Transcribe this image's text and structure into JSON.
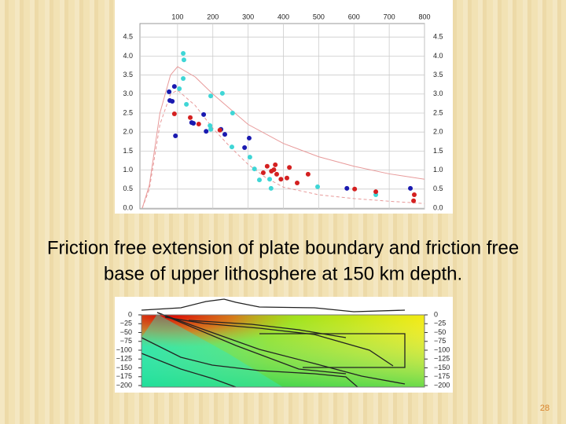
{
  "chart_data": [
    {
      "type": "scatter",
      "xlim": [
        0,
        800
      ],
      "xticks": [
        100,
        200,
        300,
        400,
        500,
        600,
        700,
        800
      ],
      "ylim": [
        0,
        4.7
      ],
      "yticks": [
        {
          "value": 0,
          "label": "0.0"
        },
        {
          "value": 0.5,
          "label": "0.5"
        },
        {
          "value": 1,
          "label": "1.0"
        },
        {
          "value": 1.5,
          "label": "1.5"
        },
        {
          "value": 2,
          "label": "2.0"
        },
        {
          "value": 2.5,
          "label": "2.5"
        },
        {
          "value": 3,
          "label": "3.0"
        },
        {
          "value": 3.5,
          "label": "3.5"
        },
        {
          "value": 4,
          "label": "4.0"
        },
        {
          "value": 4.5,
          "label": "4.5"
        }
      ],
      "grid": true,
      "series": [
        {
          "type": "line",
          "color": "#e89a9a",
          "dash": false,
          "x": [
            0,
            20,
            50,
            80,
            100,
            150,
            200,
            300,
            400,
            500,
            600,
            700,
            800
          ],
          "values": [
            0,
            0.6,
            2.5,
            3.5,
            3.72,
            3.45,
            3.0,
            2.2,
            1.7,
            1.35,
            1.1,
            0.9,
            0.76
          ]
        },
        {
          "type": "line",
          "color": "#e89a9a",
          "dash": true,
          "x": [
            0,
            20,
            50,
            80,
            100,
            150,
            200,
            250,
            300,
            350,
            400,
            500,
            600,
            700,
            800
          ],
          "values": [
            0,
            0.5,
            2.2,
            3.0,
            3.1,
            2.7,
            2.1,
            1.6,
            1.15,
            0.8,
            0.55,
            0.35,
            0.25,
            0.18,
            0.12
          ]
        },
        {
          "type": "scatter",
          "color": "#3fd6d6",
          "x": [
            116,
            118,
            116,
            105,
            125,
            194,
            227,
            256,
            192,
            194,
            254,
            305,
            318,
            332,
            361,
            365,
            497,
            662,
            76
          ],
          "values": [
            4.07,
            3.9,
            3.41,
            3.14,
            2.73,
            2.95,
            3.02,
            2.5,
            2.17,
            2.07,
            1.61,
            1.34,
            1.03,
            0.74,
            0.76,
            0.52,
            0.56,
            0.35,
            3.06
          ]
        },
        {
          "type": "scatter",
          "color": "#1a1ab0",
          "x": [
            76,
            91,
            78,
            85,
            140,
            174,
            181,
            223,
            234,
            303,
            94,
            290,
            580,
            760,
            145
          ],
          "values": [
            3.06,
            3.2,
            2.83,
            2.81,
            2.25,
            2.46,
            2.02,
            2.07,
            1.94,
            1.84,
            1.9,
            1.59,
            0.52,
            0.52,
            2.23
          ]
        },
        {
          "type": "scatter",
          "color": "#d42020",
          "x": [
            91,
            136,
            160,
            220,
            354,
            366,
            381,
            377,
            393,
            410,
            417,
            439,
            470,
            602,
            662,
            771,
            769,
            343,
            373
          ],
          "values": [
            2.48,
            2.38,
            2.21,
            2.05,
            1.1,
            0.97,
            0.89,
            1.14,
            0.76,
            0.79,
            1.07,
            0.66,
            0.89,
            0.5,
            0.43,
            0.35,
            0.19,
            0.93,
            1.01
          ]
        }
      ]
    },
    {
      "type": "cross-section",
      "ylim": [
        -200,
        0
      ],
      "yticks": [
        {
          "value": 0,
          "label": "0"
        },
        {
          "value": -25,
          "label": "−25"
        },
        {
          "value": -50,
          "label": "−50"
        },
        {
          "value": -75,
          "label": "−75"
        },
        {
          "value": -100,
          "label": "−100"
        },
        {
          "value": -125,
          "label": "−125"
        },
        {
          "value": -150,
          "label": "−150"
        },
        {
          "value": -175,
          "label": "−175"
        },
        {
          "value": -200,
          "label": "−200"
        }
      ]
    }
  ],
  "caption": [
    "Friction free extension of plate boundary and friction free",
    "base of upper lithosphere at 150 km depth."
  ],
  "slide_number": "28"
}
